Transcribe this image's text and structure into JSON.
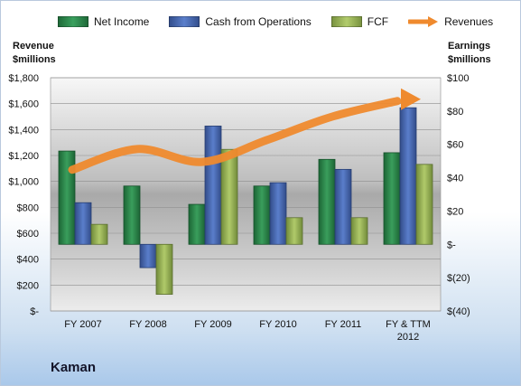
{
  "company": "Kaman",
  "legend": {
    "net_income": "Net Income",
    "cfo": "Cash from Operations",
    "fcf": "FCF",
    "revenues": "Revenues"
  },
  "left_axis_title": [
    "Revenue",
    "$millions"
  ],
  "right_axis_title": [
    "Earnings",
    "$millions"
  ],
  "colors": {
    "net_income": "#2e8b4e",
    "cfo": "#4a6bb5",
    "fcf": "#9fbb59",
    "revenues": "#ef8a2e"
  },
  "chart_data": {
    "type": "bar",
    "categories": [
      [
        "FY 2007"
      ],
      [
        "FY 2008"
      ],
      [
        "FY 2009"
      ],
      [
        "FY 2010"
      ],
      [
        "FY 2011"
      ],
      [
        "FY & TTM",
        "2012"
      ]
    ],
    "left_axis": {
      "ylim": [
        0,
        1800
      ],
      "ticks": [
        "$-",
        "$200",
        "$400",
        "$600",
        "$800",
        "$1,000",
        "$1,200",
        "$1,400",
        "$1,600",
        "$1,800"
      ]
    },
    "right_axis": {
      "ylim": [
        -40,
        100
      ],
      "ticks": [
        "$(40)",
        "$(20)",
        "$-",
        "$20",
        "$40",
        "$60",
        "$80",
        "$100"
      ]
    },
    "series": [
      {
        "name": "Net Income",
        "axis": "right",
        "type": "bar",
        "values": [
          56,
          35,
          24,
          35,
          51,
          55
        ]
      },
      {
        "name": "Cash from Operations",
        "axis": "right",
        "type": "bar",
        "values": [
          25,
          -14,
          71,
          37,
          45,
          82
        ]
      },
      {
        "name": "FCF",
        "axis": "right",
        "type": "bar",
        "values": [
          12,
          -30,
          57,
          16,
          16,
          48
        ]
      },
      {
        "name": "Revenues",
        "axis": "left",
        "type": "line",
        "values": [
          1090,
          1250,
          1150,
          1320,
          1500,
          1620
        ]
      }
    ]
  }
}
